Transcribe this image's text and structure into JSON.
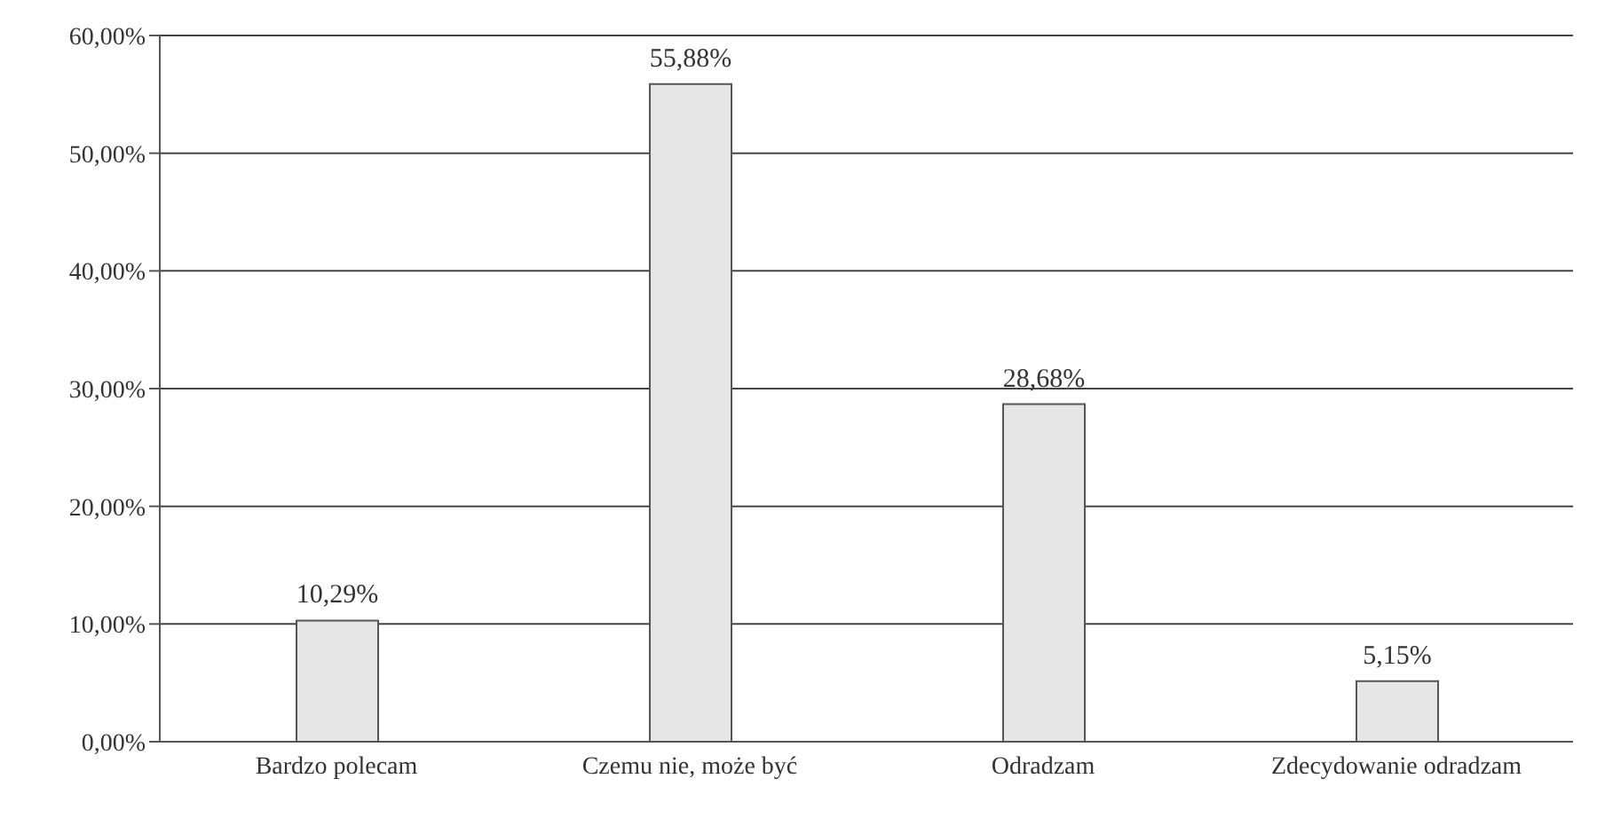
{
  "chart_data": {
    "type": "bar",
    "categories": [
      "Bardzo polecam",
      "Czemu nie, może być",
      "Odradzam",
      "Zdecydowanie odradzam"
    ],
    "values": [
      10.29,
      55.88,
      28.68,
      5.15
    ],
    "value_labels": [
      "10,29%",
      "55,88%",
      "28,68%",
      "5,15%"
    ],
    "color": "#e6e6e6",
    "ylim": [
      0,
      60
    ],
    "yticks": [
      {
        "value": 0,
        "label": "0,00%"
      },
      {
        "value": 10,
        "label": "10,00%"
      },
      {
        "value": 20,
        "label": "20,00%"
      },
      {
        "value": 30,
        "label": "30,00%"
      },
      {
        "value": 40,
        "label": "40,00%"
      },
      {
        "value": 50,
        "label": "50,00%"
      },
      {
        "value": 60,
        "label": "60,00%"
      }
    ],
    "grid": "y"
  }
}
